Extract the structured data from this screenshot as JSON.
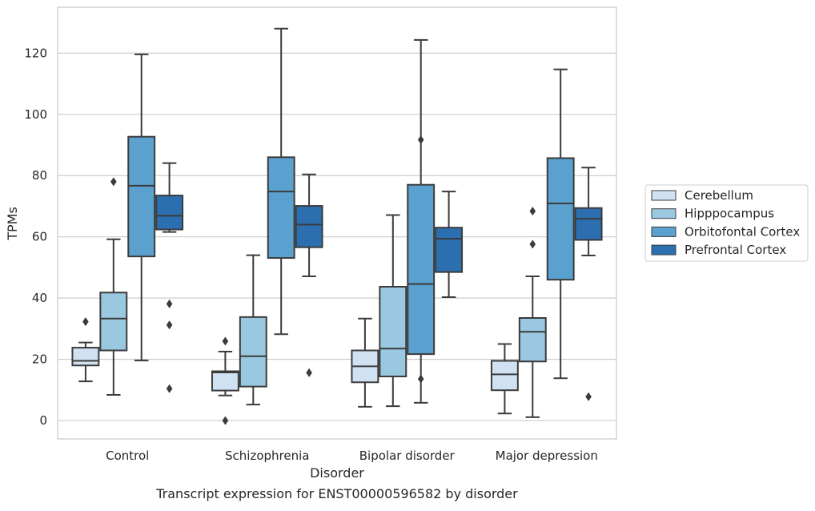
{
  "chart_data": {
    "type": "box",
    "caption": "Transcript expression for ENST00000596582 by disorder",
    "xlabel": "Disorder",
    "ylabel": "TPMs",
    "ylim": [
      -6,
      135
    ],
    "yticks": [
      0,
      20,
      40,
      60,
      80,
      100,
      120
    ],
    "grid": true,
    "legend_position": "right",
    "categories": [
      "Control",
      "Schizophrenia",
      "Bipolar disorder",
      "Major depression"
    ],
    "series": [
      {
        "name": "Cerebellum",
        "color": "#d0e1f2",
        "boxes": [
          {
            "whisker_low": 12.8,
            "q1": 18.0,
            "median": 19.5,
            "q3": 23.8,
            "whisker_high": 25.5,
            "outliers": [
              32.3
            ]
          },
          {
            "whisker_low": 8.2,
            "q1": 9.8,
            "median": 15.7,
            "q3": 16.1,
            "whisker_high": 22.5,
            "outliers": [
              0.0,
              25.9
            ]
          },
          {
            "whisker_low": 4.5,
            "q1": 12.5,
            "median": 17.7,
            "q3": 22.9,
            "whisker_high": 33.3,
            "outliers": []
          },
          {
            "whisker_low": 2.3,
            "q1": 9.9,
            "median": 15.1,
            "q3": 19.5,
            "whisker_high": 25.0,
            "outliers": []
          }
        ]
      },
      {
        "name": "Hipppocampus",
        "color": "#9ac8e0",
        "boxes": [
          {
            "whisker_low": 8.4,
            "q1": 22.9,
            "median": 33.3,
            "q3": 41.8,
            "whisker_high": 59.2,
            "outliers": [
              78.0
            ]
          },
          {
            "whisker_low": 5.2,
            "q1": 11.1,
            "median": 21.0,
            "q3": 33.8,
            "whisker_high": 54.0,
            "outliers": []
          },
          {
            "whisker_low": 4.7,
            "q1": 14.4,
            "median": 23.5,
            "q3": 43.7,
            "whisker_high": 67.1,
            "outliers": []
          },
          {
            "whisker_low": 1.1,
            "q1": 19.3,
            "median": 29.0,
            "q3": 33.5,
            "whisker_high": 47.1,
            "outliers": [
              57.6,
              68.4
            ]
          }
        ]
      },
      {
        "name": "Orbitofontal Cortex",
        "color": "#5aa1cf",
        "boxes": [
          {
            "whisker_low": 19.6,
            "q1": 53.6,
            "median": 76.7,
            "q3": 92.7,
            "whisker_high": 119.6,
            "outliers": []
          },
          {
            "whisker_low": 28.2,
            "q1": 53.1,
            "median": 74.8,
            "q3": 86.0,
            "whisker_high": 128.0,
            "outliers": []
          },
          {
            "whisker_low": 5.8,
            "q1": 21.7,
            "median": 44.6,
            "q3": 77.0,
            "whisker_high": 124.3,
            "outliers": [
              13.6,
              91.7
            ]
          },
          {
            "whisker_low": 13.8,
            "q1": 46.0,
            "median": 70.9,
            "q3": 85.7,
            "whisker_high": 114.7,
            "outliers": []
          }
        ]
      },
      {
        "name": "Prefrontal Cortex",
        "color": "#2c6fb0",
        "boxes": [
          {
            "whisker_low": 61.6,
            "q1": 62.4,
            "median": 66.9,
            "q3": 73.5,
            "whisker_high": 84.1,
            "outliers": [
              10.4,
              31.2,
              38.1
            ]
          },
          {
            "whisker_low": 47.1,
            "q1": 56.6,
            "median": 64.0,
            "q3": 70.1,
            "whisker_high": 80.4,
            "outliers": [
              15.6
            ]
          },
          {
            "whisker_low": 40.3,
            "q1": 48.5,
            "median": 59.4,
            "q3": 63.0,
            "whisker_high": 74.8,
            "outliers": []
          },
          {
            "whisker_low": 53.9,
            "q1": 59.0,
            "median": 65.9,
            "q3": 69.4,
            "whisker_high": 82.6,
            "outliers": [
              7.8
            ]
          }
        ]
      }
    ]
  }
}
